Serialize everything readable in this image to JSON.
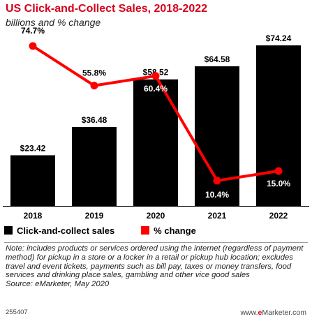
{
  "header": {
    "title": "US Click-and-Collect Sales, 2018-2022",
    "subtitle": "billions and % change"
  },
  "colors": {
    "bar": "#000000",
    "line": "#ff0000",
    "title": "#d6001c"
  },
  "chart_data": {
    "type": "bar",
    "title": "US Click-and-Collect Sales, 2018-2022",
    "subtitle": "billions and % change",
    "categories": [
      "2018",
      "2019",
      "2020",
      "2021",
      "2022"
    ],
    "series": [
      {
        "name": "Click-and-collect sales",
        "type": "bar",
        "values": [
          23.42,
          36.48,
          58.52,
          64.58,
          74.24
        ],
        "labels": [
          "$23.42",
          "$36.48",
          "$58.52",
          "$64.58",
          "$74.24"
        ]
      },
      {
        "name": "% change",
        "type": "line",
        "values": [
          74.7,
          55.8,
          60.4,
          10.4,
          15.0
        ],
        "labels": [
          "74.7%",
          "55.8%",
          "60.4%",
          "10.4%",
          "15.0%"
        ]
      }
    ],
    "legend": [
      "Click-and-collect sales",
      "% change"
    ],
    "legend_position": "bottom"
  },
  "note": "Note: includes products or services ordered using the internet (regardless of payment method) for pickup in a store or a locker in a retail or pickup hub location; excludes travel and event tickets, payments such as bill pay, taxes or money transfers, food services and drinking place sales, gambling and other vice good sales",
  "source": "Source: eMarketer, May 2020",
  "footer": {
    "id": "255407",
    "brand_prefix": "www.",
    "brand_accent": "e",
    "brand_suffix": "Marketer.com"
  }
}
